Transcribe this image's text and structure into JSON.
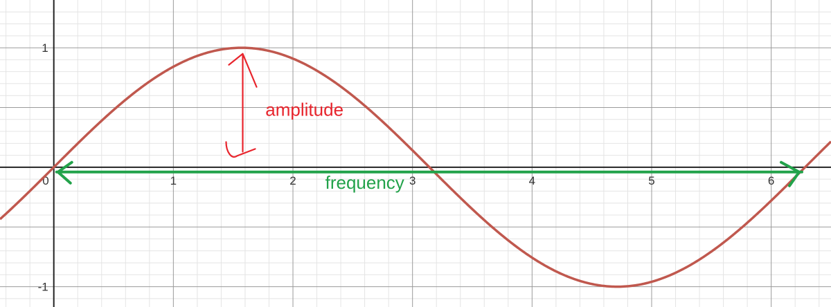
{
  "chart_data": {
    "type": "line",
    "function": "sin(x)",
    "xlim": [
      -0.45,
      6.5
    ],
    "ylim": [
      -1.17,
      1.4
    ],
    "grid": true,
    "x_ticks": [
      0,
      1,
      2,
      3,
      4,
      5,
      6
    ],
    "y_ticks": [
      1,
      -1
    ],
    "x_tick_labels": [
      "0",
      "1",
      "2",
      "3",
      "4",
      "5",
      "6"
    ],
    "y_tick_labels": [
      "1",
      "-1"
    ],
    "series": [
      {
        "color": "#c0584e",
        "x": [
          -0.45,
          0,
          0.5,
          1,
          1.5708,
          2,
          2.5,
          3,
          3.1416,
          3.5,
          4,
          4.5,
          4.7124,
          5,
          5.5,
          6,
          6.2832,
          6.5
        ],
        "y": [
          -0.435,
          0,
          0.479,
          0.841,
          1,
          0.909,
          0.598,
          0.141,
          0,
          -0.351,
          -0.757,
          -0.978,
          -1,
          -0.959,
          -0.706,
          -0.279,
          0,
          0.215
        ]
      }
    ],
    "annotations": [
      {
        "text": "amplitude",
        "color": "#e8242c",
        "at_x": 1.77,
        "at_y": 0.43,
        "arrow_from": [
          1.58,
          0.13
        ],
        "arrow_to": [
          1.58,
          0.95
        ]
      },
      {
        "text": "frequency",
        "color": "#22a24a",
        "at_x": 2.27,
        "at_y": -0.18,
        "span_x": [
          0,
          6.28
        ]
      }
    ]
  }
}
